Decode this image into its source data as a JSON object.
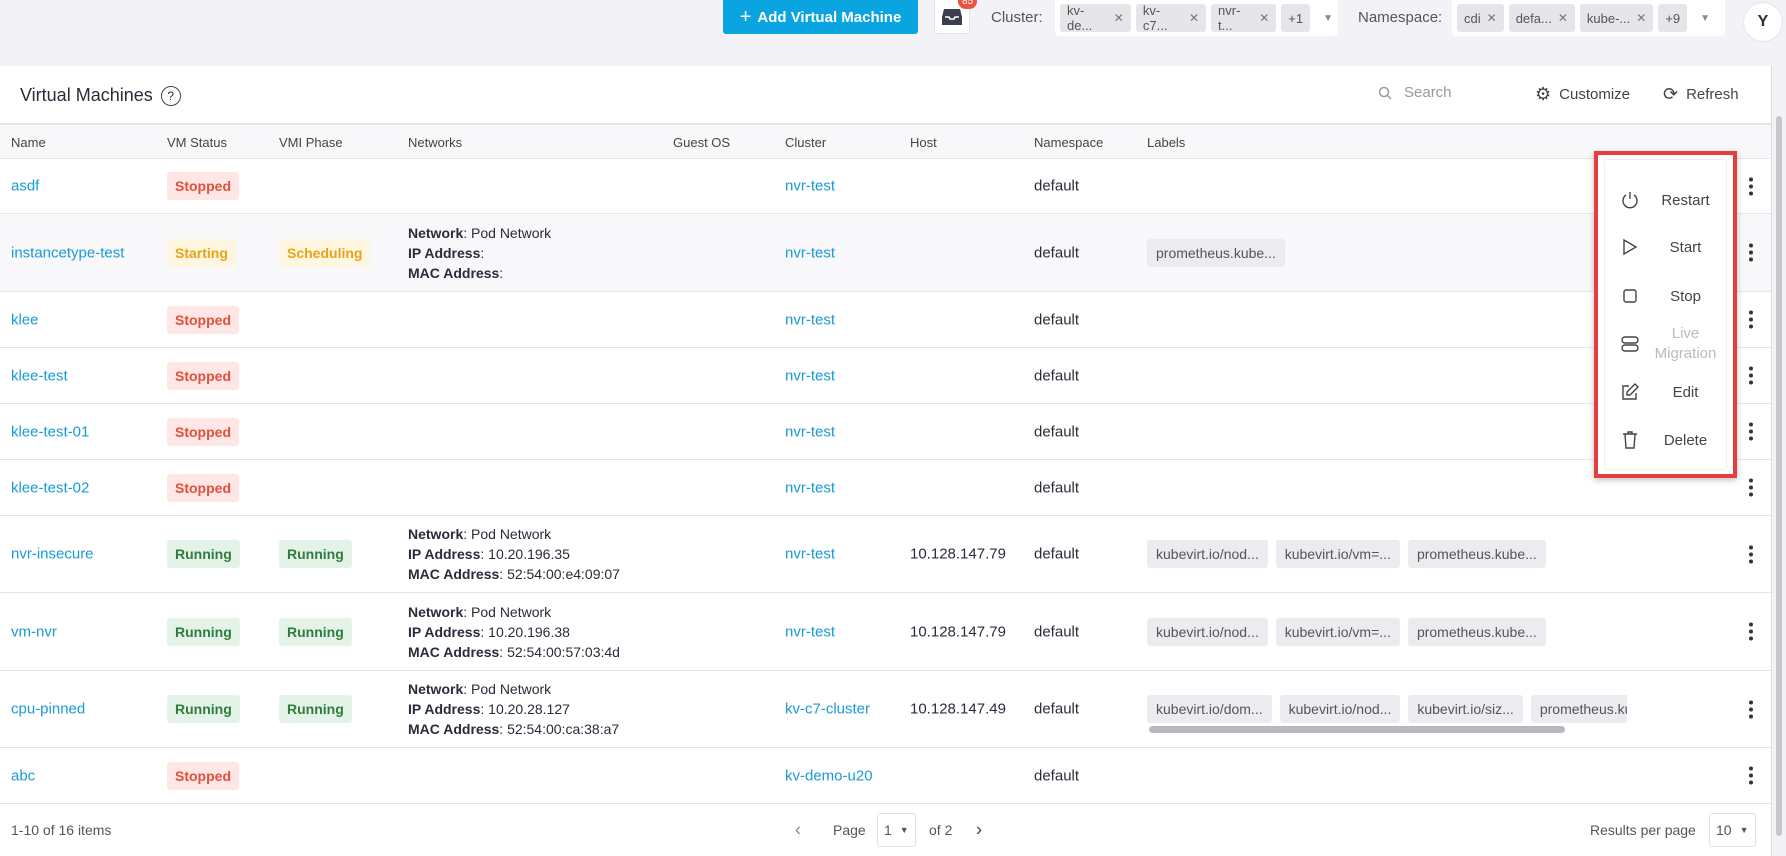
{
  "topbar": {
    "add_vm": "Add Virtual Machine",
    "notifications_count": "85",
    "cluster_label": "Cluster:",
    "cluster_chips": [
      "kv-de...",
      "kv-c7...",
      "nvr-t..."
    ],
    "cluster_more": "+1",
    "namespace_label": "Namespace:",
    "namespace_chips": [
      "cdi",
      "defa...",
      "kube-..."
    ],
    "namespace_more": "+9",
    "avatar": "Y"
  },
  "panel": {
    "title": "Virtual Machines",
    "search_placeholder": "Search",
    "customize": "Customize",
    "refresh": "Refresh"
  },
  "columns": [
    "Name",
    "VM Status",
    "VMI Phase",
    "Networks",
    "Guest OS",
    "Cluster",
    "Host",
    "Namespace",
    "Labels"
  ],
  "rows": [
    {
      "name": "asdf",
      "status": "Stopped",
      "phase": "",
      "cluster": "nvr-test",
      "host": "",
      "namespace": "default",
      "labels": []
    },
    {
      "name": "instancetype-test",
      "status": "Starting",
      "phase": "Scheduling",
      "network": {
        "Network": "Pod Network",
        "IP Address": "",
        "MAC Address": ""
      },
      "cluster": "nvr-test",
      "host": "",
      "namespace": "default",
      "labels": [
        "prometheus.kube..."
      ]
    },
    {
      "name": "klee",
      "status": "Stopped",
      "phase": "",
      "cluster": "nvr-test",
      "host": "",
      "namespace": "default",
      "labels": []
    },
    {
      "name": "klee-test",
      "status": "Stopped",
      "phase": "",
      "cluster": "nvr-test",
      "host": "",
      "namespace": "default",
      "labels": []
    },
    {
      "name": "klee-test-01",
      "status": "Stopped",
      "phase": "",
      "cluster": "nvr-test",
      "host": "",
      "namespace": "default",
      "labels": []
    },
    {
      "name": "klee-test-02",
      "status": "Stopped",
      "phase": "",
      "cluster": "nvr-test",
      "host": "",
      "namespace": "default",
      "labels": []
    },
    {
      "name": "nvr-insecure",
      "status": "Running",
      "phase": "Running",
      "network": {
        "Network": "Pod Network",
        "IP Address": "10.20.196.35",
        "MAC Address": "52:54:00:e4:09:07"
      },
      "cluster": "nvr-test",
      "host": "10.128.147.79",
      "namespace": "default",
      "labels": [
        "kubevirt.io/nod...",
        "kubevirt.io/vm=...",
        "prometheus.kube..."
      ]
    },
    {
      "name": "vm-nvr",
      "status": "Running",
      "phase": "Running",
      "network": {
        "Network": "Pod Network",
        "IP Address": "10.20.196.38",
        "MAC Address": "52:54:00:57:03:4d"
      },
      "cluster": "nvr-test",
      "host": "10.128.147.79",
      "namespace": "default",
      "labels": [
        "kubevirt.io/nod...",
        "kubevirt.io/vm=...",
        "prometheus.kube..."
      ]
    },
    {
      "name": "cpu-pinned",
      "status": "Running",
      "phase": "Running",
      "network": {
        "Network": "Pod Network",
        "IP Address": "10.20.28.127",
        "MAC Address": "52:54:00:ca:38:a7"
      },
      "cluster": "kv-c7-cluster",
      "host": "10.128.147.49",
      "namespace": "default",
      "labels": [
        "kubevirt.io/dom...",
        "kubevirt.io/nod...",
        "kubevirt.io/siz...",
        "prometheus.kube..."
      ]
    },
    {
      "name": "abc",
      "status": "Stopped",
      "phase": "",
      "cluster": "kv-demo-u20",
      "host": "",
      "namespace": "default",
      "labels": []
    }
  ],
  "menu": [
    {
      "label": "Restart",
      "icon": "power-icon"
    },
    {
      "label": "Start",
      "icon": "play-icon"
    },
    {
      "label": "Stop",
      "icon": "stop-icon"
    },
    {
      "label": "Live Migration",
      "icon": "server-icon",
      "disabled": true
    },
    {
      "label": "Edit",
      "icon": "edit-icon"
    },
    {
      "label": "Delete",
      "icon": "trash-icon"
    }
  ],
  "footer": {
    "items": "1-10 of 16 items",
    "page_label": "Page",
    "page": "1",
    "of": "of 2",
    "per_page_label": "Results per page",
    "per_page": "10"
  }
}
